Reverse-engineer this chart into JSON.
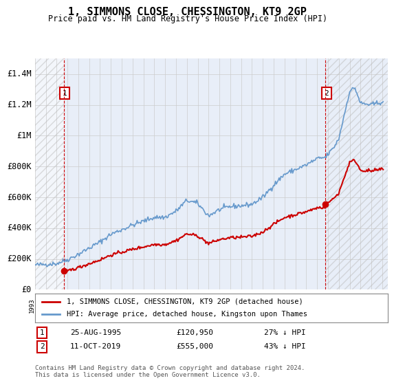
{
  "title": "1, SIMMONS CLOSE, CHESSINGTON, KT9 2GP",
  "subtitle": "Price paid vs. HM Land Registry's House Price Index (HPI)",
  "ylim": [
    0,
    1500000
  ],
  "yticks": [
    0,
    200000,
    400000,
    600000,
    800000,
    1000000,
    1200000,
    1400000
  ],
  "ytick_labels": [
    "£0",
    "£200K",
    "£400K",
    "£600K",
    "£800K",
    "£1M",
    "£1.2M",
    "£1.4M"
  ],
  "xlim_start": 1993.0,
  "xlim_end": 2025.5,
  "transaction1_year": 1995.646,
  "transaction1_price": 120950,
  "transaction2_year": 2019.777,
  "transaction2_price": 555000,
  "transaction1_label": "25-AUG-1995",
  "transaction1_price_label": "£120,950",
  "transaction1_hpi_label": "27% ↓ HPI",
  "transaction2_label": "11-OCT-2019",
  "transaction2_price_label": "£555,000",
  "transaction2_hpi_label": "43% ↓ HPI",
  "legend_line1": "1, SIMMONS CLOSE, CHESSINGTON, KT9 2GP (detached house)",
  "legend_line2": "HPI: Average price, detached house, Kingston upon Thames",
  "footer": "Contains HM Land Registry data © Crown copyright and database right 2024.\nThis data is licensed under the Open Government Licence v3.0.",
  "line_color": "#cc0000",
  "hpi_color": "#6699cc",
  "hatch_color": "#cccccc",
  "grid_color": "#cccccc",
  "background_color": "#ffffff",
  "plot_bg_color": "#e8eef8"
}
